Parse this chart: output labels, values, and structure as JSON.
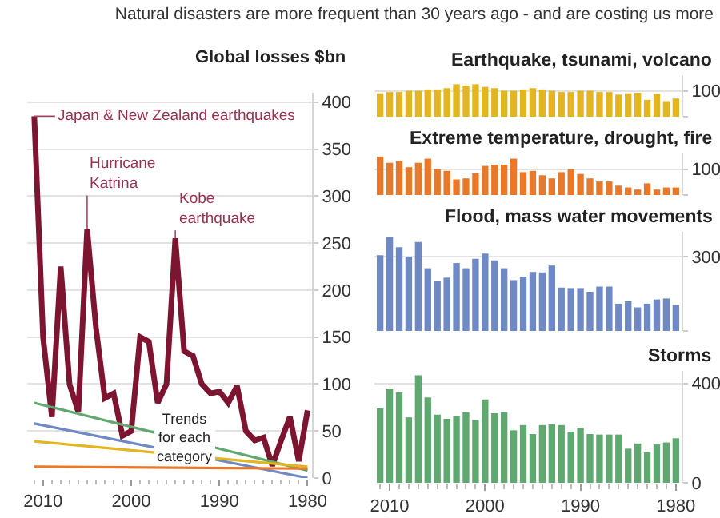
{
  "chart_data": [
    {
      "type": "line",
      "title": "Natural disasters are more frequent than 30 years ago - and are costing us more",
      "ylabel": "Global losses $bn",
      "x": [
        1980,
        1981,
        1982,
        1983,
        1984,
        1985,
        1986,
        1987,
        1988,
        1989,
        1990,
        1991,
        1992,
        1993,
        1994,
        1995,
        1996,
        1997,
        1998,
        1999,
        2000,
        2001,
        2002,
        2003,
        2004,
        2005,
        2006,
        2007,
        2008,
        2009,
        2010,
        2011
      ],
      "series": [
        {
          "color": "#7d1430",
          "values": [
            72,
            18,
            65,
            40,
            13,
            43,
            40,
            50,
            98,
            80,
            92,
            90,
            100,
            130,
            135,
            255,
            100,
            80,
            145,
            150,
            50,
            45,
            90,
            85,
            160,
            265,
            70,
            100,
            225,
            65,
            150,
            385
          ]
        },
        {
          "type": "line",
          "color": "#5fa870",
          "values": [
            8,
            null,
            null,
            null,
            null,
            null,
            null,
            null,
            null,
            null,
            null,
            null,
            null,
            null,
            null,
            null,
            null,
            null,
            null,
            null,
            null,
            null,
            null,
            null,
            null,
            null,
            null,
            null,
            null,
            null,
            null,
            80
          ]
        },
        {
          "type": "line",
          "color": "#6f89c4",
          "values": [
            0,
            null,
            null,
            null,
            null,
            null,
            null,
            null,
            null,
            null,
            null,
            null,
            null,
            null,
            null,
            null,
            null,
            null,
            null,
            null,
            null,
            null,
            null,
            null,
            null,
            null,
            null,
            null,
            null,
            null,
            null,
            58
          ]
        },
        {
          "type": "line",
          "color": "#e3b520",
          "values": [
            12,
            null,
            null,
            null,
            null,
            null,
            null,
            null,
            null,
            null,
            null,
            null,
            null,
            null,
            null,
            null,
            null,
            null,
            null,
            null,
            null,
            null,
            null,
            null,
            null,
            null,
            null,
            null,
            null,
            null,
            null,
            39
          ]
        },
        {
          "type": "line",
          "color": "#e8782a",
          "values": [
            10,
            null,
            null,
            null,
            null,
            null,
            null,
            null,
            null,
            null,
            null,
            null,
            null,
            null,
            null,
            null,
            null,
            null,
            null,
            null,
            null,
            null,
            null,
            null,
            null,
            null,
            null,
            null,
            null,
            null,
            null,
            12
          ]
        }
      ],
      "xlim": [
        2011.8,
        1979.5
      ],
      "xticks": [
        1980,
        1990,
        2000,
        2010
      ],
      "ylim": [
        0,
        410
      ],
      "yticks": [
        0,
        50,
        100,
        150,
        200,
        250,
        300,
        350,
        400
      ],
      "grid": "y",
      "annotations": [
        {
          "text": "Japan & New Zealand earthquakes",
          "x": 2011,
          "y": 385
        },
        {
          "text": "Hurricane\nKatrina",
          "x": 2005,
          "y": 265
        },
        {
          "text": "Kobe\nearthquake",
          "x": 1995,
          "y": 255
        },
        {
          "text": "Trends\nfor each\ncategory",
          "x": 1994,
          "y": 44
        }
      ]
    },
    {
      "type": "bar",
      "title": "Earthquake, tsunami, volcano",
      "color": "#e3b520",
      "x": [
        1980,
        1981,
        1982,
        1983,
        1984,
        1985,
        1986,
        1987,
        1988,
        1989,
        1990,
        1991,
        1992,
        1993,
        1994,
        1995,
        1996,
        1997,
        1998,
        1999,
        2000,
        2001,
        2002,
        2003,
        2004,
        2005,
        2006,
        2007,
        2008,
        2009,
        2010,
        2011
      ],
      "values": [
        70,
        60,
        88,
        65,
        92,
        90,
        85,
        95,
        95,
        100,
        100,
        95,
        95,
        100,
        105,
        110,
        105,
        100,
        100,
        110,
        115,
        125,
        120,
        125,
        110,
        105,
        105,
        100,
        100,
        95,
        95,
        90
      ],
      "xlim": [
        2011.6,
        1979.4
      ],
      "ylim": [
        0,
        160
      ],
      "yticks": [
        0,
        100
      ],
      "grid": "y",
      "tick_labels": "y"
    },
    {
      "type": "bar",
      "title": "Extreme temperature, drought, fire",
      "color": "#e8782a",
      "x": [
        1980,
        1981,
        1982,
        1983,
        1984,
        1985,
        1986,
        1987,
        1988,
        1989,
        1990,
        1991,
        1992,
        1993,
        1994,
        1995,
        1996,
        1997,
        1998,
        1999,
        2000,
        2001,
        2002,
        2003,
        2004,
        2005,
        2006,
        2007,
        2008,
        2009,
        2010,
        2011
      ],
      "values": [
        29,
        29,
        21,
        45,
        21,
        29,
        36,
        52,
        52,
        64,
        81,
        100,
        88,
        64,
        76,
        93,
        88,
        140,
        117,
        117,
        112,
        83,
        64,
        60,
        93,
        100,
        140,
        124,
        107,
        131,
        124,
        148
      ],
      "xlim": [
        2011.6,
        1979.4
      ],
      "ylim": [
        0,
        160
      ],
      "yticks": [
        0,
        100
      ],
      "grid": "y",
      "tick_labels": "y"
    },
    {
      "type": "bar",
      "title": "Flood, mass water movements",
      "color": "#6f89c4",
      "x": [
        1980,
        1981,
        1982,
        1983,
        1984,
        1985,
        1986,
        1987,
        1988,
        1989,
        1990,
        1991,
        1992,
        1993,
        1994,
        1995,
        1996,
        1997,
        1998,
        1999,
        2000,
        2001,
        2002,
        2003,
        2004,
        2005,
        2006,
        2007,
        2008,
        2009,
        2010,
        2011
      ],
      "values": [
        105,
        131,
        127,
        110,
        95,
        120,
        110,
        179,
        179,
        158,
        173,
        173,
        175,
        264,
        236,
        238,
        219,
        205,
        253,
        285,
        312,
        291,
        253,
        274,
        215,
        200,
        253,
        359,
        300,
        338,
        380,
        306
      ],
      "xlim": [
        2011.6,
        1979.4
      ],
      "ylim": [
        0,
        400
      ],
      "yticks": [
        0,
        300
      ],
      "grid": "y",
      "tick_labels": "y"
    },
    {
      "type": "bar",
      "title": "Storms",
      "color": "#5fa870",
      "x": [
        1980,
        1981,
        1982,
        1983,
        1984,
        1985,
        1986,
        1987,
        1988,
        1989,
        1990,
        1991,
        1992,
        1993,
        1994,
        1995,
        1996,
        1997,
        1998,
        1999,
        2000,
        2001,
        2002,
        2003,
        2004,
        2005,
        2006,
        2007,
        2008,
        2009,
        2010,
        2011
      ],
      "values": [
        179,
        162,
        154,
        122,
        158,
        137,
        194,
        194,
        194,
        196,
        221,
        206,
        232,
        236,
        232,
        196,
        232,
        211,
        284,
        280,
        335,
        253,
        284,
        269,
        257,
        274,
        343,
        432,
        263,
        364,
        379,
        299
      ],
      "xlim": [
        2011.6,
        1979.4
      ],
      "xticks": [
        1980,
        1990,
        2000,
        2010
      ],
      "ylim": [
        0,
        450
      ],
      "yticks": [
        0,
        400
      ],
      "grid": "y"
    }
  ]
}
